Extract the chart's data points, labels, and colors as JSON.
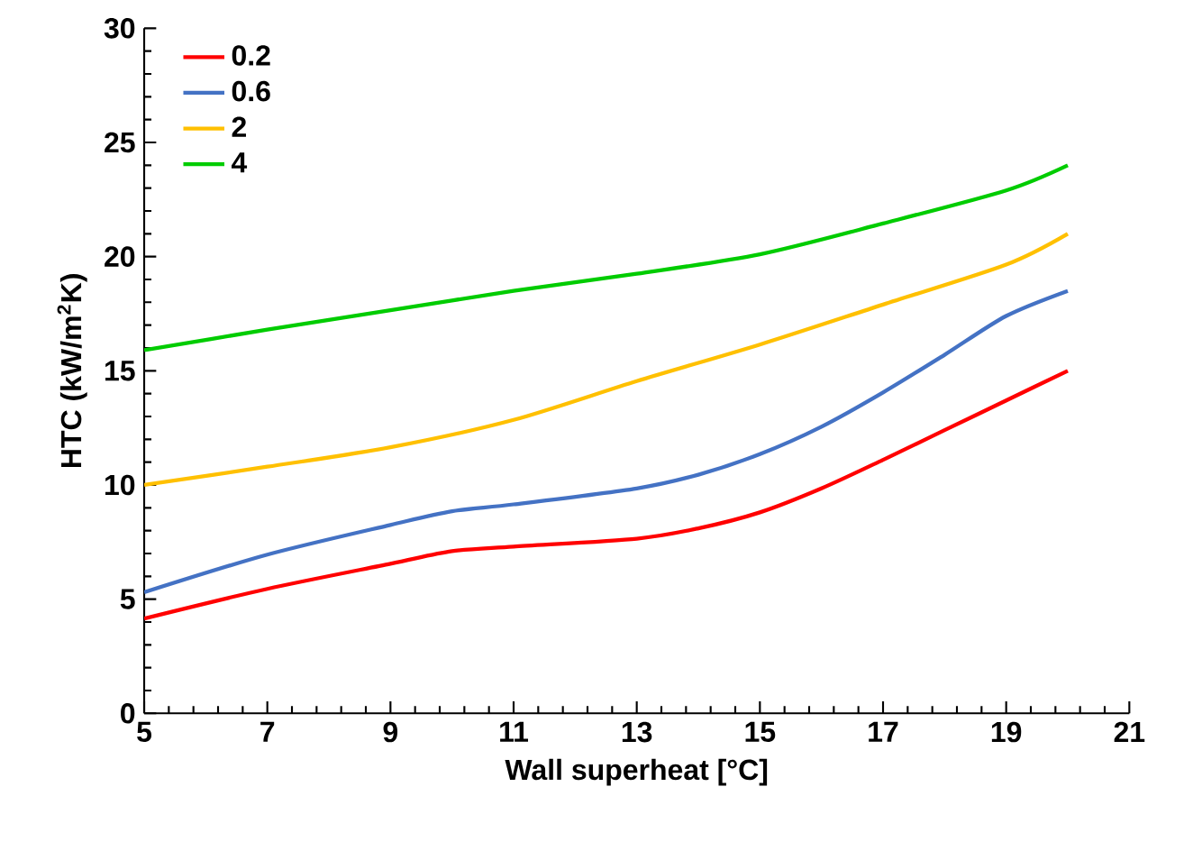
{
  "chart_data": {
    "type": "line",
    "xlabel": "Wall superheat [°C]",
    "ylabel": "HTC (kW/m$^{2}$K)",
    "xlim": [
      5,
      21
    ],
    "xticks": [
      5,
      7,
      9,
      11,
      13,
      15,
      17,
      19,
      21
    ],
    "ylim": [
      0,
      30
    ],
    "yticks": [
      0,
      5,
      10,
      15,
      20,
      25,
      30
    ],
    "legend": "top left",
    "grid": false,
    "series": [
      {
        "name": "0.2",
        "color": "#ff0000",
        "x": [
          5,
          7,
          9,
          10,
          11,
          13,
          14,
          15,
          16,
          17,
          18,
          19,
          20
        ],
        "values": [
          4.15,
          5.45,
          6.55,
          7.1,
          7.3,
          7.65,
          8.1,
          8.8,
          9.85,
          11.1,
          12.4,
          13.7,
          15.0
        ]
      },
      {
        "name": "0.6",
        "color": "#4472c4",
        "x": [
          5,
          7,
          9,
          10,
          11,
          13,
          14,
          15,
          16,
          17,
          18,
          19,
          20
        ],
        "values": [
          5.3,
          6.95,
          8.25,
          8.85,
          9.15,
          9.85,
          10.45,
          11.35,
          12.55,
          14.05,
          15.7,
          17.4,
          18.5
        ]
      },
      {
        "name": "2",
        "color": "#ffc000",
        "x": [
          5,
          7,
          9,
          11,
          13,
          15,
          17,
          19,
          20
        ],
        "values": [
          10.0,
          10.8,
          11.65,
          12.85,
          14.55,
          16.15,
          17.9,
          19.65,
          21.0
        ]
      },
      {
        "name": "4",
        "color": "#00cc00",
        "x": [
          5,
          7,
          9,
          11,
          13,
          15,
          17,
          19,
          20
        ],
        "values": [
          15.9,
          16.8,
          17.65,
          18.5,
          19.25,
          20.1,
          21.45,
          22.9,
          24.0
        ]
      }
    ]
  }
}
